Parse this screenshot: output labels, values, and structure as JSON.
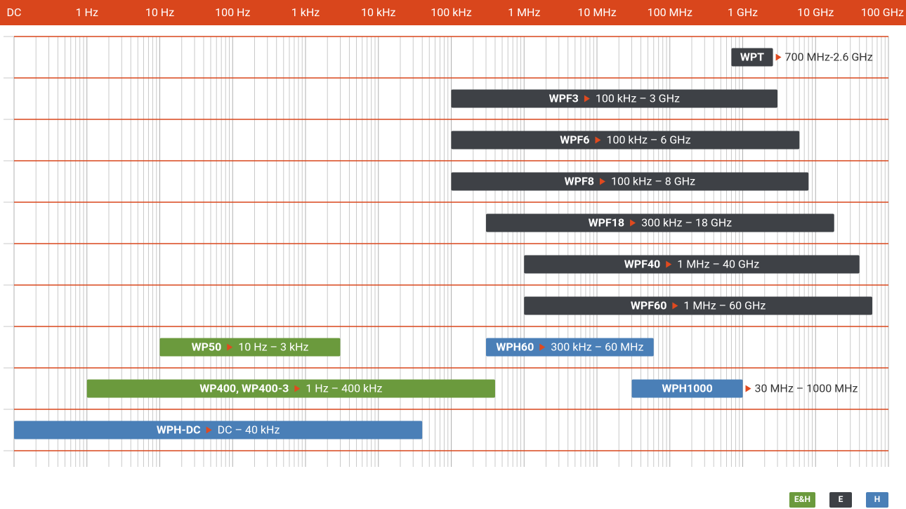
{
  "chart_data": {
    "type": "range",
    "xscale": "log",
    "xlim": [
      0.1,
      100000000000
    ],
    "xticks": [
      {
        "value": 0.1,
        "label": "DC"
      },
      {
        "value": 1,
        "label": "1 Hz"
      },
      {
        "value": 10,
        "label": "10 Hz"
      },
      {
        "value": 100,
        "label": "100 Hz"
      },
      {
        "value": 1000,
        "label": "1 kHz"
      },
      {
        "value": 10000,
        "label": "10 kHz"
      },
      {
        "value": 100000,
        "label": "100 kHz"
      },
      {
        "value": 1000000,
        "label": "1 MHz"
      },
      {
        "value": 10000000,
        "label": "10 MHz"
      },
      {
        "value": 100000000,
        "label": "100 MHz"
      },
      {
        "value": 1000000000,
        "label": "1 GHz"
      },
      {
        "value": 10000000000,
        "label": "10 GHz"
      },
      {
        "value": 100000000000,
        "label": "100 GHz"
      }
    ],
    "grid": true,
    "minor_grid": true,
    "rows": [
      [
        {
          "name": "WPT",
          "range_label": "700 MHz-2.6 GHz",
          "start": 700000000,
          "end": 2600000000,
          "color": "#3e4146"
        }
      ],
      [
        {
          "name": "WPF3",
          "range_label": "100 kHz – 3 GHz",
          "start": 100000,
          "end": 3000000000,
          "color": "#3e4146"
        }
      ],
      [
        {
          "name": "WPF6",
          "range_label": "100 kHz – 6 GHz",
          "start": 100000,
          "end": 6000000000,
          "color": "#3e4146"
        }
      ],
      [
        {
          "name": "WPF8",
          "range_label": "100 kHz – 8 GHz",
          "start": 100000,
          "end": 8000000000,
          "color": "#3e4146"
        }
      ],
      [
        {
          "name": "WPF18",
          "range_label": "300 kHz – 18 GHz",
          "start": 300000,
          "end": 18000000000,
          "color": "#3e4146"
        }
      ],
      [
        {
          "name": "WPF40",
          "range_label": "1 MHz – 40 GHz",
          "start": 1000000,
          "end": 40000000000,
          "color": "#3e4146"
        }
      ],
      [
        {
          "name": "WPF60",
          "range_label": "1 MHz – 60 GHz",
          "start": 1000000,
          "end": 60000000000,
          "color": "#3e4146"
        }
      ],
      [
        {
          "name": "WP50",
          "range_label": "10 Hz – 3 kHz",
          "start": 10,
          "end": 3000,
          "color": "#6b9a3d"
        },
        {
          "name": "WPH60",
          "range_label": "300 kHz – 60 MHz",
          "start": 300000,
          "end": 60000000,
          "color": "#4a7fb7"
        }
      ],
      [
        {
          "name": "WP400, WP400-3",
          "range_label": "1 Hz – 400 kHz",
          "start": 1,
          "end": 400000,
          "color": "#6b9a3d"
        },
        {
          "name": "WPH1000",
          "range_label": "30 MHz – 1000 MHz",
          "start": 30000000,
          "end": 1000000000,
          "color": "#4a7fb7"
        }
      ],
      [
        {
          "name": "WPH-DC",
          "range_label": "DC – 40 kHz",
          "start": 0.1,
          "end": 40000,
          "color": "#4a7fb7"
        }
      ]
    ],
    "legend": {
      "position": "lower right",
      "items": [
        {
          "name": "E&H",
          "color": "#6b9a3d"
        },
        {
          "name": "E",
          "color": "#3e4146"
        },
        {
          "name": "H",
          "color": "#4a7fb7"
        }
      ]
    }
  }
}
